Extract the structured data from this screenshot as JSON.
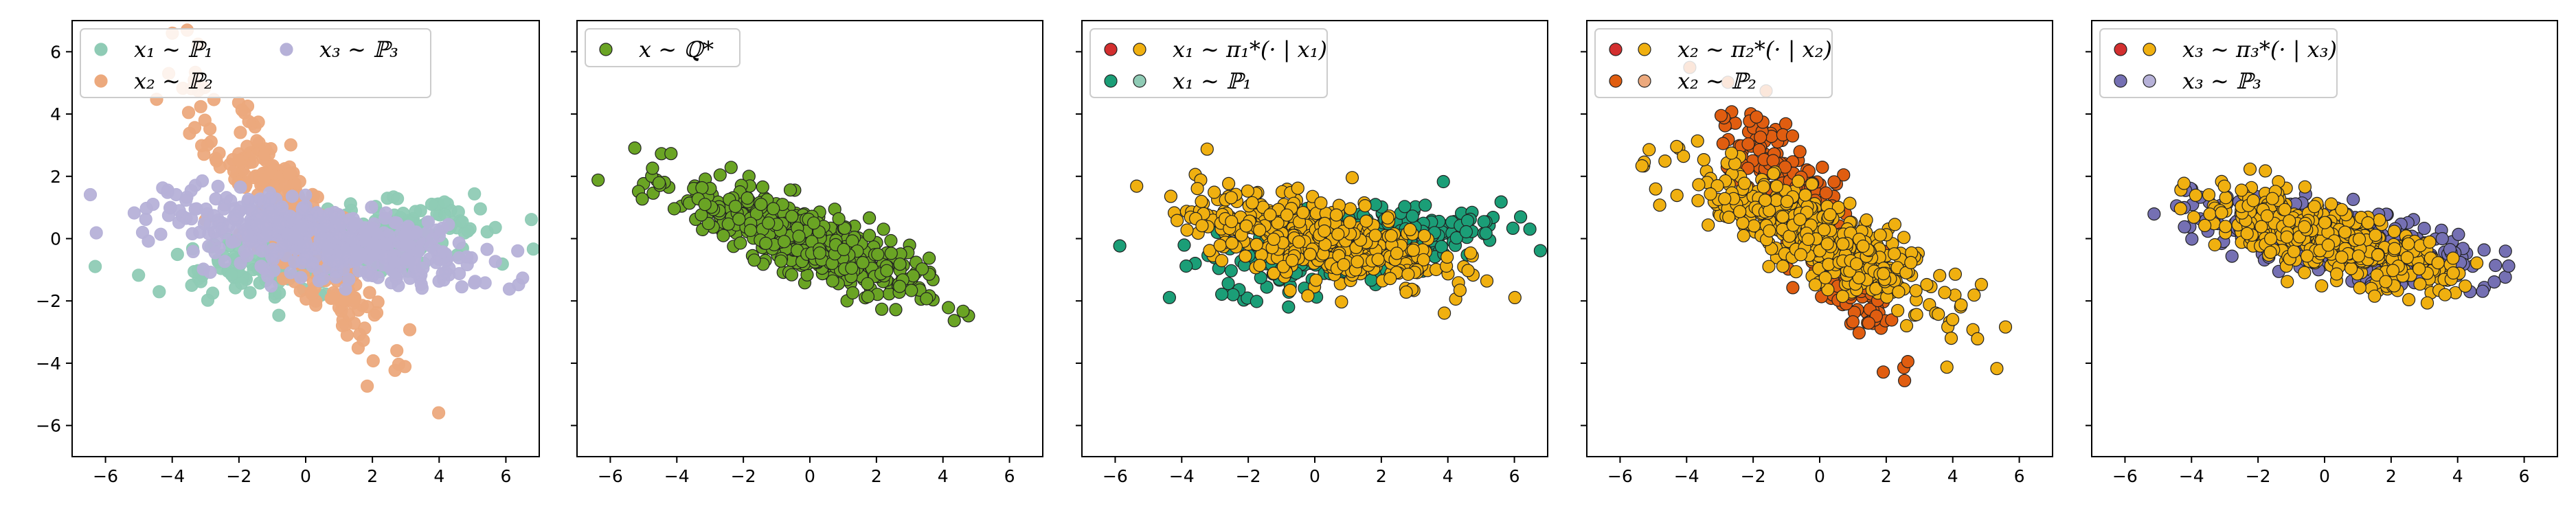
{
  "chart_data": [
    {
      "type": "scatter",
      "xlim": [
        -7,
        7
      ],
      "ylim": [
        -7,
        7
      ],
      "xticks": [
        "−6",
        "−4",
        "−2",
        "0",
        "2",
        "4",
        "6"
      ],
      "yticks": [
        "6",
        "4",
        "2",
        "0",
        "−2",
        "−4",
        "−6"
      ],
      "legend_position": "top-left",
      "legend": [
        {
          "swatches": [
            "#8fcbb5"
          ],
          "label": "x₁ ∼ ℙ₁"
        },
        {
          "swatches": [
            "#eca97d"
          ],
          "label": "x₂ ∼ ℙ₂"
        },
        {
          "swatches": [
            "#b6b1d8"
          ],
          "label": "x₃ ∼ ℙ₃"
        }
      ],
      "series": [
        {
          "color": "#8fcbb5",
          "edge": "#8fcbb5",
          "alpha": 0.95,
          "n": 420,
          "cx": 1.0,
          "cy": -0.25,
          "sd_major": 2.1,
          "sd_minor": 0.55,
          "angle": 10
        },
        {
          "color": "#eca97d",
          "edge": "#eca97d",
          "alpha": 0.95,
          "n": 330,
          "cx": -0.4,
          "cy": 0.6,
          "sd_major": 2.4,
          "sd_minor": 0.55,
          "angle": -58
        },
        {
          "color": "#b6b1d8",
          "edge": "#b6b1d8",
          "alpha": 0.95,
          "n": 460,
          "cx": 0.3,
          "cy": 0.0,
          "sd_major": 2.3,
          "sd_minor": 0.55,
          "angle": -10
        }
      ]
    },
    {
      "type": "scatter",
      "xlim": [
        -7,
        7
      ],
      "ylim": [
        -7,
        7
      ],
      "xticks": [
        "−6",
        "−4",
        "−2",
        "0",
        "2",
        "4",
        "6"
      ],
      "legend_position": "top-left",
      "legend": [
        {
          "swatches": [
            "#6aa424"
          ],
          "label": "x ∼ ℚ*"
        }
      ],
      "series": [
        {
          "color": "#6aa424",
          "edge": "#222222",
          "alpha": 1,
          "n": 520,
          "cx": -0.3,
          "cy": 0.0,
          "sd_major": 1.9,
          "sd_minor": 0.5,
          "angle": -24
        }
      ]
    },
    {
      "type": "scatter",
      "xlim": [
        -7,
        7
      ],
      "ylim": [
        -7,
        7
      ],
      "xticks": [
        "−6",
        "−4",
        "−2",
        "0",
        "2",
        "4",
        "6"
      ],
      "legend_position": "top-left",
      "legend": [
        {
          "swatches": [
            "#d32f2f",
            "#f0b010"
          ],
          "label": "x₁ ∼ π₁*(· | x₁)"
        },
        {
          "swatches": [
            "#1b9e77",
            "#8fcbb5"
          ],
          "label": "x₁ ∼ ℙ₁"
        }
      ],
      "series": [
        {
          "color": "#1b9e77",
          "edge": "#222222",
          "alpha": 1,
          "n": 380,
          "cx": 1.0,
          "cy": -0.2,
          "sd_major": 2.0,
          "sd_minor": 0.55,
          "angle": 10
        },
        {
          "color": "#f0b010",
          "edge": "#222222",
          "alpha": 1,
          "n": 480,
          "cx": 0.0,
          "cy": 0.0,
          "sd_major": 1.9,
          "sd_minor": 0.6,
          "angle": -12
        }
      ]
    },
    {
      "type": "scatter",
      "xlim": [
        -7,
        7
      ],
      "ylim": [
        -7,
        7
      ],
      "xticks": [
        "−6",
        "−4",
        "−2",
        "0",
        "2",
        "4",
        "6"
      ],
      "legend_position": "top-left",
      "legend": [
        {
          "swatches": [
            "#d32f2f",
            "#f0b010"
          ],
          "label": "x₂ ∼ π₂*(· | x₂)"
        },
        {
          "swatches": [
            "#e05d10",
            "#eca97d"
          ],
          "label": "x₂ ∼ ℙ₂"
        }
      ],
      "series": [
        {
          "color": "#e05d10",
          "edge": "#222222",
          "alpha": 1,
          "n": 330,
          "cx": -0.2,
          "cy": 0.4,
          "sd_major": 2.2,
          "sd_minor": 0.5,
          "angle": -58
        },
        {
          "color": "#f0b010",
          "edge": "#222222",
          "alpha": 1,
          "n": 480,
          "cx": 0.0,
          "cy": 0.0,
          "sd_major": 2.1,
          "sd_minor": 0.55,
          "angle": -30
        }
      ]
    },
    {
      "type": "scatter",
      "xlim": [
        -7,
        7
      ],
      "ylim": [
        -7,
        7
      ],
      "xticks": [
        "−6",
        "−4",
        "−2",
        "0",
        "2",
        "4",
        "6"
      ],
      "legend_position": "top-left",
      "legend": [
        {
          "swatches": [
            "#d32f2f",
            "#f0b010"
          ],
          "label": "x₃ ∼ π₃*(· | x₃)"
        },
        {
          "swatches": [
            "#7570b3",
            "#b6b1d8"
          ],
          "label": "x₃ ∼ ℙ₃"
        }
      ],
      "series": [
        {
          "color": "#7570b3",
          "edge": "#222222",
          "alpha": 1,
          "n": 420,
          "cx": 0.2,
          "cy": 0.0,
          "sd_major": 2.1,
          "sd_minor": 0.5,
          "angle": -12
        },
        {
          "color": "#f0b010",
          "edge": "#222222",
          "alpha": 1,
          "n": 480,
          "cx": 0.0,
          "cy": 0.0,
          "sd_major": 1.9,
          "sd_minor": 0.5,
          "angle": -18
        }
      ]
    }
  ]
}
